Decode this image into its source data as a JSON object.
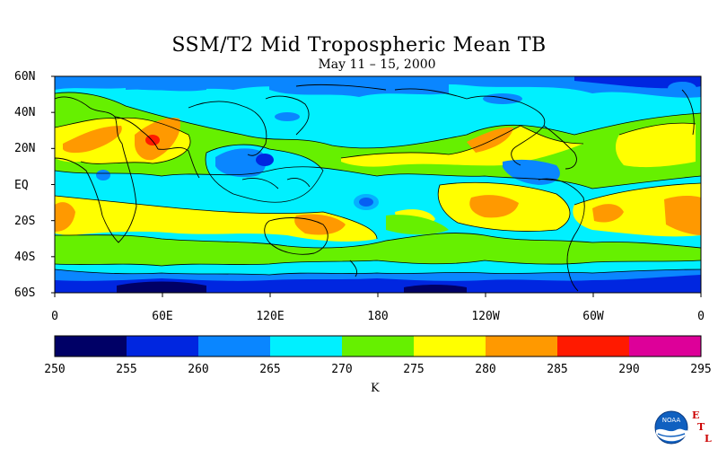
{
  "title": "SSM/T2 Mid Tropospheric Mean TB",
  "subtitle": "May 11 – 15, 2000",
  "map": {
    "lat_labels": [
      "60N",
      "40N",
      "20N",
      "EQ",
      "20S",
      "40S",
      "60S"
    ],
    "lon_labels": [
      "0",
      "60E",
      "120E",
      "180",
      "120W",
      "60W",
      "0"
    ]
  },
  "colorbar": {
    "ticks": [
      "250",
      "255",
      "260",
      "265",
      "270",
      "275",
      "280",
      "285",
      "290",
      "295"
    ],
    "colors": [
      "#000066",
      "#0026e0",
      "#0a86ff",
      "#00f0ff",
      "#66f000",
      "#ffff00",
      "#ff9900",
      "#ff1a00",
      "#dd0099"
    ],
    "unit": "K"
  },
  "logo": {
    "org_text": "NOAA",
    "side_letters": [
      "E",
      "T",
      "L"
    ],
    "icon": "noaa-logo-icon"
  }
}
